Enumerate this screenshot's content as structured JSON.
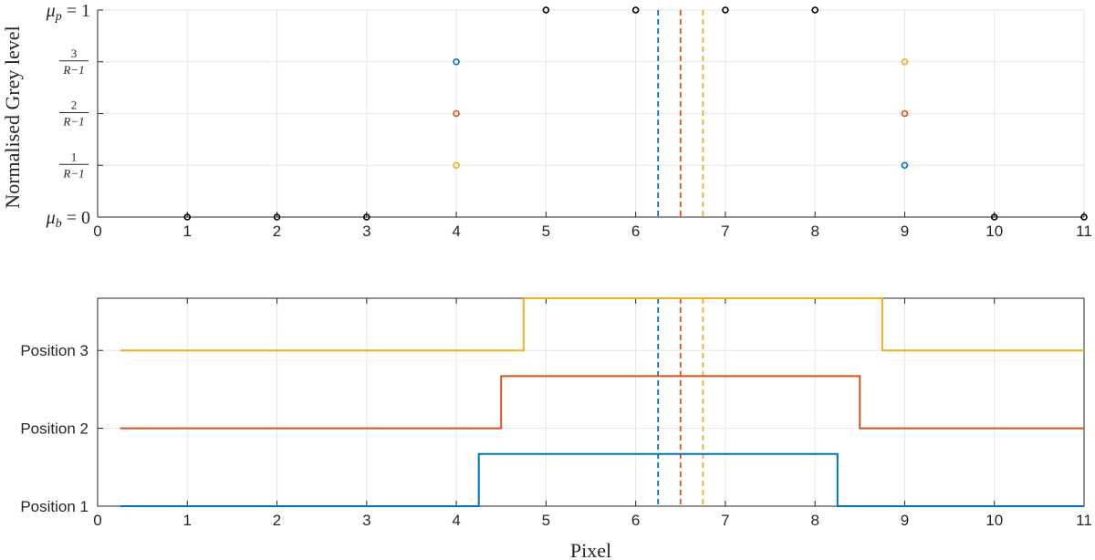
{
  "colors": {
    "pos1": "#0072BD",
    "pos2": "#D95319",
    "pos3": "#EDB120",
    "black": "#000000",
    "axis": "#262626",
    "grid": "#e6e6e6"
  },
  "chart_data": [
    {
      "type": "scatter",
      "title": "",
      "xlabel": "",
      "ylabel": "Normalised Grey level",
      "xlim": [
        0,
        11
      ],
      "ylim": [
        0,
        4
      ],
      "grid": true,
      "x_ticks": [
        "0",
        "1",
        "2",
        "3",
        "4",
        "5",
        "6",
        "7",
        "8",
        "9",
        "10",
        "11"
      ],
      "y_ticks": [
        {
          "value": 0,
          "label": "μb = 0"
        },
        {
          "value": 1,
          "label": "1/(R−1)"
        },
        {
          "value": 2,
          "label": "2/(R−1)"
        },
        {
          "value": 3,
          "label": "3/(R−1)"
        },
        {
          "value": 4,
          "label": "μp = 1"
        }
      ],
      "series": [
        {
          "color_key": "black",
          "points": [
            [
              1,
              0
            ],
            [
              2,
              0
            ],
            [
              3,
              0
            ],
            [
              5,
              4
            ],
            [
              6,
              4
            ],
            [
              7,
              4
            ],
            [
              8,
              4
            ],
            [
              10,
              0
            ],
            [
              11,
              0
            ]
          ]
        },
        {
          "color_key": "pos1",
          "points": [
            [
              4,
              3
            ],
            [
              9,
              1
            ]
          ]
        },
        {
          "color_key": "pos2",
          "points": [
            [
              4,
              2
            ],
            [
              9,
              2
            ]
          ]
        },
        {
          "color_key": "pos3",
          "points": [
            [
              4,
              1
            ],
            [
              9,
              3
            ]
          ]
        }
      ],
      "vlines": [
        {
          "x": 6.25,
          "color_key": "pos1"
        },
        {
          "x": 6.5,
          "color_key": "pos2"
        },
        {
          "x": 6.75,
          "color_key": "pos3"
        }
      ]
    },
    {
      "type": "line",
      "title": "",
      "xlabel": "Pixel",
      "ylabel": "",
      "xlim": [
        0,
        11
      ],
      "ylim": [
        1,
        3.67
      ],
      "grid": true,
      "x_ticks": [
        "0",
        "1",
        "2",
        "3",
        "4",
        "5",
        "6",
        "7",
        "8",
        "9",
        "10",
        "11"
      ],
      "y_ticks": [
        {
          "value": 1,
          "label": "Position 1"
        },
        {
          "value": 2,
          "label": "Position 2"
        },
        {
          "value": 3,
          "label": "Position 3"
        }
      ],
      "series": [
        {
          "color_key": "pos1",
          "x": [
            0.25,
            4.25,
            4.25,
            8.25,
            8.25,
            11
          ],
          "y": [
            1,
            1,
            1.67,
            1.67,
            1,
            1
          ]
        },
        {
          "color_key": "pos2",
          "x": [
            0.25,
            4.5,
            4.5,
            8.5,
            8.5,
            11
          ],
          "y": [
            2,
            2,
            2.67,
            2.67,
            2,
            2
          ]
        },
        {
          "color_key": "pos3",
          "x": [
            0.25,
            4.75,
            4.75,
            8.75,
            8.75,
            11
          ],
          "y": [
            3,
            3,
            3.67,
            3.67,
            3,
            3
          ]
        }
      ],
      "vlines": [
        {
          "x": 6.25,
          "color_key": "pos1"
        },
        {
          "x": 6.5,
          "color_key": "pos2"
        },
        {
          "x": 6.75,
          "color_key": "pos3"
        }
      ]
    }
  ]
}
